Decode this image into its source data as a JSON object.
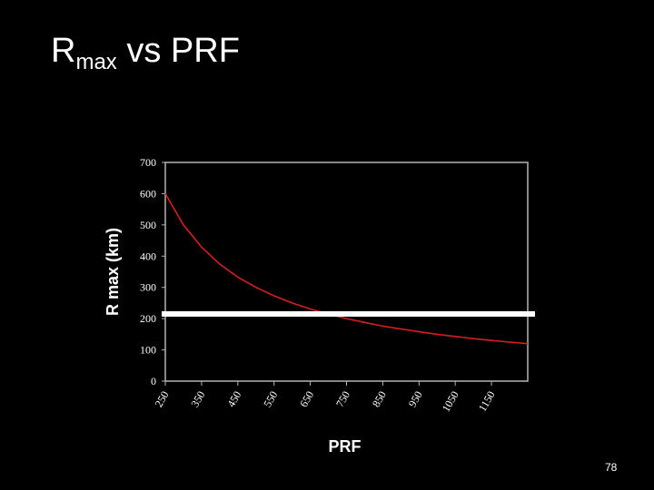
{
  "slide": {
    "title_main": "R",
    "title_sub": "max",
    "title_rest": " vs PRF",
    "page_number": "78"
  },
  "colors": {
    "background": "#000000",
    "curve": "#d81e1e",
    "threshold_line": "#ffffff",
    "axes": "#b4b4b4",
    "text": "#ffffff"
  },
  "chart_data": {
    "type": "line",
    "title": "",
    "xlabel": "PRF",
    "ylabel": "R max (km)",
    "xlim": [
      250,
      1250
    ],
    "ylim": [
      0,
      700
    ],
    "yticks": [
      0,
      100,
      200,
      300,
      400,
      500,
      600,
      700
    ],
    "xticks": [
      250,
      350,
      450,
      550,
      650,
      750,
      850,
      950,
      1050,
      1150
    ],
    "grid": false,
    "series": [
      {
        "x": [
          250,
          300,
          350,
          400,
          450,
          500,
          550,
          600,
          650,
          700,
          750,
          800,
          850,
          900,
          950,
          1000,
          1050,
          1100,
          1150,
          1200,
          1250
        ],
        "y": [
          600,
          500,
          429,
          375,
          333,
          300,
          273,
          250,
          231,
          214,
          200,
          188,
          176,
          167,
          158,
          150,
          143,
          136,
          130,
          125,
          120
        ]
      }
    ],
    "threshold": {
      "y": 215
    }
  }
}
